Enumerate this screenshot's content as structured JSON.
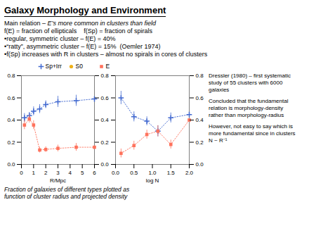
{
  "title": "Galaxy Morphology and Environment",
  "annotations": [
    [
      "Main relation – ",
      "E’s more common in clusters than field"
    ],
    "f(E) = fraction of ellipticals    f(Sp) = fraction of spirals",
    "•regular, symmetric cluster – f(E) = 40%",
    "•“ratty”, asymmetric cluster – f(E) = 15%  (Oemler 1974)",
    "•f(Sp) increases with R in clusters – almost no spirals in cores of clusters"
  ],
  "notes": [
    [
      "Dressler (1980) – first systematic",
      "study of 55 clusters with 6000",
      "galaxies"
    ],
    [
      "Concluded that the fundamental",
      "relation is morphology-density",
      "rather than morphology-radius"
    ],
    [
      "However, not easy to say which is",
      "more fundamental since in clusters",
      "N ~ R⁻¹"
    ]
  ],
  "caption": "Fraction of galaxies of different types plotted as\nfunction of cluster radius and projected density",
  "chart_data": [
    {
      "type": "line",
      "xlabel": "R/Mpc",
      "x": [
        0.25,
        0.65,
        1.0,
        1.5,
        2.0,
        3.0,
        4.5,
        6.0
      ],
      "xlim": [
        0,
        6
      ],
      "xticks": [
        0,
        1,
        2,
        3,
        4,
        5,
        6
      ],
      "ylim": [
        0,
        0.8
      ],
      "yticks": [
        {
          "value": 0,
          "label": "0.0"
        },
        0.2,
        0.4,
        0.6,
        0.8
      ],
      "series": [
        {
          "name": "Sp+Irr",
          "marker": "plus",
          "line_style": "dotted",
          "values": [
            0.42,
            0.44,
            0.48,
            0.5,
            0.54,
            0.565,
            0.575,
            0.59
          ],
          "errors": [
            0.04,
            0.03,
            0.04,
            0.04,
            0.035,
            0.05,
            0.05,
            0.06
          ]
        },
        {
          "name": "S0",
          "marker": "circle",
          "line_style": "dotted",
          "values": [
            null,
            null,
            null,
            null,
            null,
            null,
            null,
            null
          ]
        },
        {
          "name": "E",
          "marker": "square",
          "line_style": "dotted",
          "values": [
            0.355,
            0.41,
            0.355,
            0.13,
            0.135,
            0.145,
            0.155,
            0.155
          ],
          "errors": [
            0.04,
            0.035,
            0.04,
            0.025,
            0.025,
            0.03,
            0.035,
            0.04
          ]
        }
      ]
    },
    {
      "type": "line",
      "xlabel": "log N",
      "x": [
        0.15,
        0.5,
        0.85,
        1.15,
        1.5,
        2.0
      ],
      "xlim": [
        0,
        2
      ],
      "xticks": [
        {
          "value": 0,
          "label": "0.0"
        },
        0.5,
        {
          "value": 1.0,
          "label": "1.0"
        },
        1.5,
        {
          "value": 2.0,
          "label": "2.0"
        }
      ],
      "ylim": [
        0,
        0.8
      ],
      "yticks": [
        {
          "value": 0,
          "label": "0.0"
        },
        0.2,
        0.4,
        0.6,
        0.8
      ],
      "series": [
        {
          "name": "Sp+Irr",
          "marker": "plus",
          "line_style": "dotted",
          "values": [
            0.6,
            0.43,
            0.39,
            0.3,
            0.42,
            0.45
          ],
          "errors": [
            0.06,
            0.045,
            0.04,
            0.05,
            0.045,
            0.06
          ]
        },
        {
          "name": "E",
          "marker": "square",
          "line_style": "dotted",
          "values": [
            0.1,
            0.17,
            0.27,
            0.3,
            0.18,
            0.4
          ],
          "errors": [
            0.04,
            0.04,
            0.04,
            0.05,
            0.04,
            0.055
          ]
        }
      ]
    }
  ]
}
